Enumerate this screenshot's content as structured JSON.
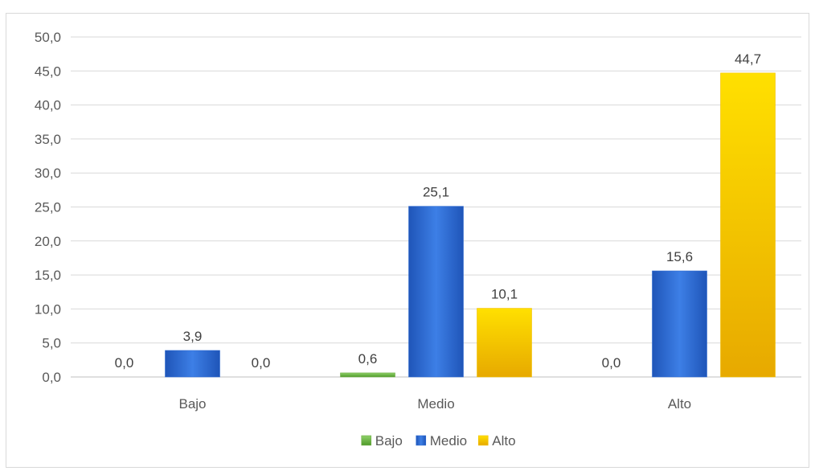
{
  "chart_data": {
    "type": "bar",
    "title": "",
    "xlabel": "",
    "ylabel": "",
    "categories": [
      "Bajo",
      "Medio",
      "Alto"
    ],
    "series": [
      {
        "name": "Bajo",
        "values": [
          0.0,
          0.6,
          0.0
        ],
        "labels": [
          "0,0",
          "0,6",
          "0,0"
        ],
        "color": "#70ad47"
      },
      {
        "name": "Medio",
        "values": [
          3.9,
          25.1,
          15.6
        ],
        "labels": [
          "3,9",
          "25,1",
          "15,6"
        ],
        "color": "#2f6bd1"
      },
      {
        "name": "Alto",
        "values": [
          0.0,
          10.1,
          44.7
        ],
        "labels": [
          "0,0",
          "10,1",
          "44,7"
        ],
        "color": "#f2c000"
      }
    ],
    "ylim": [
      0,
      50
    ],
    "yticks": [
      0,
      5,
      10,
      15,
      20,
      25,
      30,
      35,
      40,
      45,
      50
    ],
    "ytick_labels": [
      "0,0",
      "5,0",
      "10,0",
      "15,0",
      "20,0",
      "25,0",
      "30,0",
      "35,0",
      "40,0",
      "45,0",
      "50,0"
    ],
    "grid": true,
    "legend_position": "bottom"
  }
}
